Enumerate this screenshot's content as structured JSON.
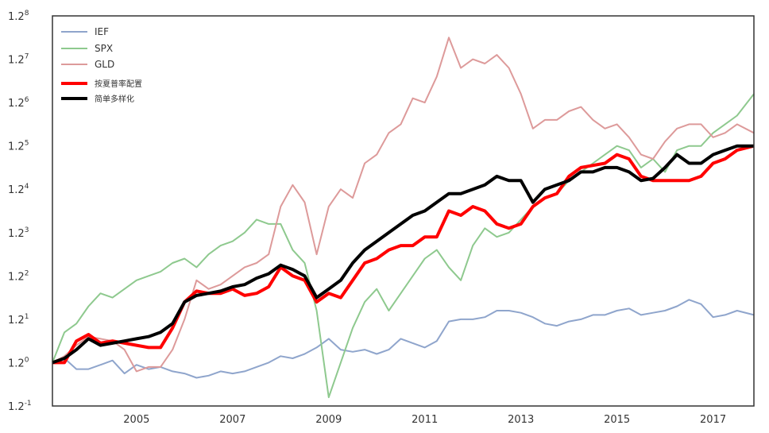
{
  "chart_data": {
    "type": "line",
    "y_scale": "log",
    "y_log_base": 1.2,
    "ylim": [
      -1,
      8
    ],
    "xlim": [
      2003.25,
      2017.85
    ],
    "grid": false,
    "legend_position": "top-left",
    "yticks": [
      {
        "base": "1.2",
        "exp": "-1",
        "value": -1
      },
      {
        "base": "1.2",
        "exp": "0",
        "value": 0
      },
      {
        "base": "1.2",
        "exp": "1",
        "value": 1
      },
      {
        "base": "1.2",
        "exp": "2",
        "value": 2
      },
      {
        "base": "1.2",
        "exp": "3",
        "value": 3
      },
      {
        "base": "1.2",
        "exp": "4",
        "value": 4
      },
      {
        "base": "1.2",
        "exp": "5",
        "value": 5
      },
      {
        "base": "1.2",
        "exp": "6",
        "value": 6
      },
      {
        "base": "1.2",
        "exp": "7",
        "value": 7
      },
      {
        "base": "1.2",
        "exp": "8",
        "value": 8
      }
    ],
    "xticks": [
      {
        "label": "2005",
        "value": 2005
      },
      {
        "label": "2007",
        "value": 2007
      },
      {
        "label": "2009",
        "value": 2009
      },
      {
        "label": "2011",
        "value": 2011
      },
      {
        "label": "2013",
        "value": 2013
      },
      {
        "label": "2015",
        "value": 2015
      },
      {
        "label": "2017",
        "value": 2017
      }
    ],
    "series": [
      {
        "name": "IEF",
        "color": "#8fa5cc",
        "width": 2,
        "x": [
          2003.25,
          2003.5,
          2003.75,
          2004.0,
          2004.25,
          2004.5,
          2004.75,
          2005.0,
          2005.25,
          2005.5,
          2005.75,
          2006.0,
          2006.25,
          2006.5,
          2006.75,
          2007.0,
          2007.25,
          2007.5,
          2007.75,
          2008.0,
          2008.25,
          2008.5,
          2008.75,
          2009.0,
          2009.25,
          2009.5,
          2009.75,
          2010.0,
          2010.25,
          2010.5,
          2010.75,
          2011.0,
          2011.25,
          2011.5,
          2011.75,
          2012.0,
          2012.25,
          2012.5,
          2012.75,
          2013.0,
          2013.25,
          2013.5,
          2013.75,
          2014.0,
          2014.25,
          2014.5,
          2014.75,
          2015.0,
          2015.25,
          2015.5,
          2015.75,
          2016.0,
          2016.25,
          2016.5,
          2016.75,
          2017.0,
          2017.25,
          2017.5,
          2017.85
        ],
        "y": [
          0,
          0.1,
          -0.15,
          -0.15,
          -0.05,
          0.05,
          -0.25,
          -0.05,
          -0.15,
          -0.1,
          -0.2,
          -0.25,
          -0.35,
          -0.3,
          -0.2,
          -0.25,
          -0.2,
          -0.1,
          0.0,
          0.15,
          0.1,
          0.2,
          0.35,
          0.55,
          0.3,
          0.25,
          0.3,
          0.2,
          0.3,
          0.55,
          0.45,
          0.35,
          0.5,
          0.95,
          1.0,
          1.0,
          1.05,
          1.2,
          1.2,
          1.15,
          1.05,
          0.9,
          0.85,
          0.95,
          1.0,
          1.1,
          1.1,
          1.2,
          1.25,
          1.1,
          1.15,
          1.2,
          1.3,
          1.45,
          1.35,
          1.05,
          1.1,
          1.2,
          1.1
        ]
      },
      {
        "name": "SPX",
        "color": "#8ec98e",
        "width": 2,
        "x": [
          2003.25,
          2003.5,
          2003.75,
          2004.0,
          2004.25,
          2004.5,
          2004.75,
          2005.0,
          2005.25,
          2005.5,
          2005.75,
          2006.0,
          2006.25,
          2006.5,
          2006.75,
          2007.0,
          2007.25,
          2007.5,
          2007.75,
          2008.0,
          2008.25,
          2008.5,
          2008.75,
          2009.0,
          2009.25,
          2009.5,
          2009.75,
          2010.0,
          2010.25,
          2010.5,
          2010.75,
          2011.0,
          2011.25,
          2011.5,
          2011.75,
          2012.0,
          2012.25,
          2012.5,
          2012.75,
          2013.0,
          2013.25,
          2013.5,
          2013.75,
          2014.0,
          2014.25,
          2014.5,
          2014.75,
          2015.0,
          2015.25,
          2015.5,
          2015.75,
          2016.0,
          2016.25,
          2016.5,
          2016.75,
          2017.0,
          2017.25,
          2017.5,
          2017.85
        ],
        "y": [
          0,
          0.7,
          0.9,
          1.3,
          1.6,
          1.5,
          1.7,
          1.9,
          2.0,
          2.1,
          2.3,
          2.4,
          2.2,
          2.5,
          2.7,
          2.8,
          3.0,
          3.3,
          3.2,
          3.2,
          2.6,
          2.3,
          1.2,
          -0.8,
          0.0,
          0.8,
          1.4,
          1.7,
          1.2,
          1.6,
          2.0,
          2.4,
          2.6,
          2.2,
          1.9,
          2.7,
          3.1,
          2.9,
          3.0,
          3.3,
          3.6,
          3.8,
          3.9,
          4.2,
          4.4,
          4.6,
          4.8,
          5.0,
          4.9,
          4.5,
          4.7,
          4.4,
          4.9,
          5.0,
          5.0,
          5.3,
          5.5,
          5.7,
          6.2
        ]
      },
      {
        "name": "GLD",
        "color": "#dd9a9a",
        "width": 2,
        "x": [
          2003.25,
          2003.5,
          2003.75,
          2004.0,
          2004.25,
          2004.5,
          2004.75,
          2005.0,
          2005.25,
          2005.5,
          2005.75,
          2006.0,
          2006.25,
          2006.5,
          2006.75,
          2007.0,
          2007.25,
          2007.5,
          2007.75,
          2008.0,
          2008.25,
          2008.5,
          2008.75,
          2009.0,
          2009.25,
          2009.5,
          2009.75,
          2010.0,
          2010.25,
          2010.5,
          2010.75,
          2011.0,
          2011.25,
          2011.5,
          2011.75,
          2012.0,
          2012.25,
          2012.5,
          2012.75,
          2013.0,
          2013.25,
          2013.5,
          2013.75,
          2014.0,
          2014.25,
          2014.5,
          2014.75,
          2015.0,
          2015.25,
          2015.5,
          2015.75,
          2016.0,
          2016.25,
          2016.5,
          2016.75,
          2017.0,
          2017.25,
          2017.5,
          2017.85
        ],
        "y": [
          0,
          0.15,
          0.4,
          0.6,
          0.55,
          0.5,
          0.3,
          -0.2,
          -0.1,
          -0.1,
          0.3,
          1.0,
          1.9,
          1.7,
          1.8,
          2.0,
          2.2,
          2.3,
          2.5,
          3.6,
          4.1,
          3.7,
          2.5,
          3.6,
          4.0,
          3.8,
          4.6,
          4.8,
          5.3,
          5.5,
          6.1,
          6.0,
          6.6,
          7.5,
          6.8,
          7.0,
          6.9,
          7.1,
          6.8,
          6.2,
          5.4,
          5.6,
          5.6,
          5.8,
          5.9,
          5.6,
          5.4,
          5.5,
          5.2,
          4.8,
          4.7,
          5.1,
          5.4,
          5.5,
          5.5,
          5.2,
          5.3,
          5.5,
          5.3
        ]
      },
      {
        "name": "按夏普率配置",
        "color": "#ff0000",
        "width": 4,
        "x": [
          2003.25,
          2003.5,
          2003.75,
          2004.0,
          2004.25,
          2004.5,
          2004.75,
          2005.0,
          2005.25,
          2005.5,
          2005.75,
          2006.0,
          2006.25,
          2006.5,
          2006.75,
          2007.0,
          2007.25,
          2007.5,
          2007.75,
          2008.0,
          2008.25,
          2008.5,
          2008.75,
          2009.0,
          2009.25,
          2009.5,
          2009.75,
          2010.0,
          2010.25,
          2010.5,
          2010.75,
          2011.0,
          2011.25,
          2011.5,
          2011.75,
          2012.0,
          2012.25,
          2012.5,
          2012.75,
          2013.0,
          2013.25,
          2013.5,
          2013.75,
          2014.0,
          2014.25,
          2014.5,
          2014.75,
          2015.0,
          2015.25,
          2015.5,
          2015.75,
          2016.0,
          2016.25,
          2016.5,
          2016.75,
          2017.0,
          2017.25,
          2017.5,
          2017.85
        ],
        "y": [
          0,
          0.0,
          0.5,
          0.65,
          0.45,
          0.5,
          0.45,
          0.4,
          0.35,
          0.35,
          0.8,
          1.4,
          1.65,
          1.6,
          1.6,
          1.7,
          1.55,
          1.6,
          1.75,
          2.2,
          2.0,
          1.9,
          1.4,
          1.6,
          1.5,
          1.9,
          2.3,
          2.4,
          2.6,
          2.7,
          2.7,
          2.9,
          2.9,
          3.5,
          3.4,
          3.6,
          3.5,
          3.2,
          3.1,
          3.2,
          3.6,
          3.8,
          3.9,
          4.3,
          4.5,
          4.55,
          4.6,
          4.8,
          4.7,
          4.3,
          4.2,
          4.2,
          4.2,
          4.2,
          4.3,
          4.6,
          4.7,
          4.9,
          5.0
        ]
      },
      {
        "name": "简单多样化",
        "color": "#000000",
        "width": 4,
        "x": [
          2003.25,
          2003.5,
          2003.75,
          2004.0,
          2004.25,
          2004.5,
          2004.75,
          2005.0,
          2005.25,
          2005.5,
          2005.75,
          2006.0,
          2006.25,
          2006.5,
          2006.75,
          2007.0,
          2007.25,
          2007.5,
          2007.75,
          2008.0,
          2008.25,
          2008.5,
          2008.75,
          2009.0,
          2009.25,
          2009.5,
          2009.75,
          2010.0,
          2010.25,
          2010.5,
          2010.75,
          2011.0,
          2011.25,
          2011.5,
          2011.75,
          2012.0,
          2012.25,
          2012.5,
          2012.75,
          2013.0,
          2013.25,
          2013.5,
          2013.75,
          2014.0,
          2014.25,
          2014.5,
          2014.75,
          2015.0,
          2015.25,
          2015.5,
          2015.75,
          2016.0,
          2016.25,
          2016.5,
          2016.75,
          2017.0,
          2017.25,
          2017.5,
          2017.85
        ],
        "y": [
          0,
          0.1,
          0.3,
          0.55,
          0.4,
          0.45,
          0.5,
          0.55,
          0.6,
          0.7,
          0.9,
          1.4,
          1.55,
          1.6,
          1.65,
          1.75,
          1.8,
          1.95,
          2.05,
          2.25,
          2.15,
          2.0,
          1.5,
          1.7,
          1.9,
          2.3,
          2.6,
          2.8,
          3.0,
          3.2,
          3.4,
          3.5,
          3.7,
          3.9,
          3.9,
          4.0,
          4.1,
          4.3,
          4.2,
          4.2,
          3.7,
          4.0,
          4.1,
          4.2,
          4.4,
          4.4,
          4.5,
          4.5,
          4.4,
          4.2,
          4.25,
          4.5,
          4.8,
          4.6,
          4.6,
          4.8,
          4.9,
          5.0,
          5.0
        ]
      }
    ]
  }
}
